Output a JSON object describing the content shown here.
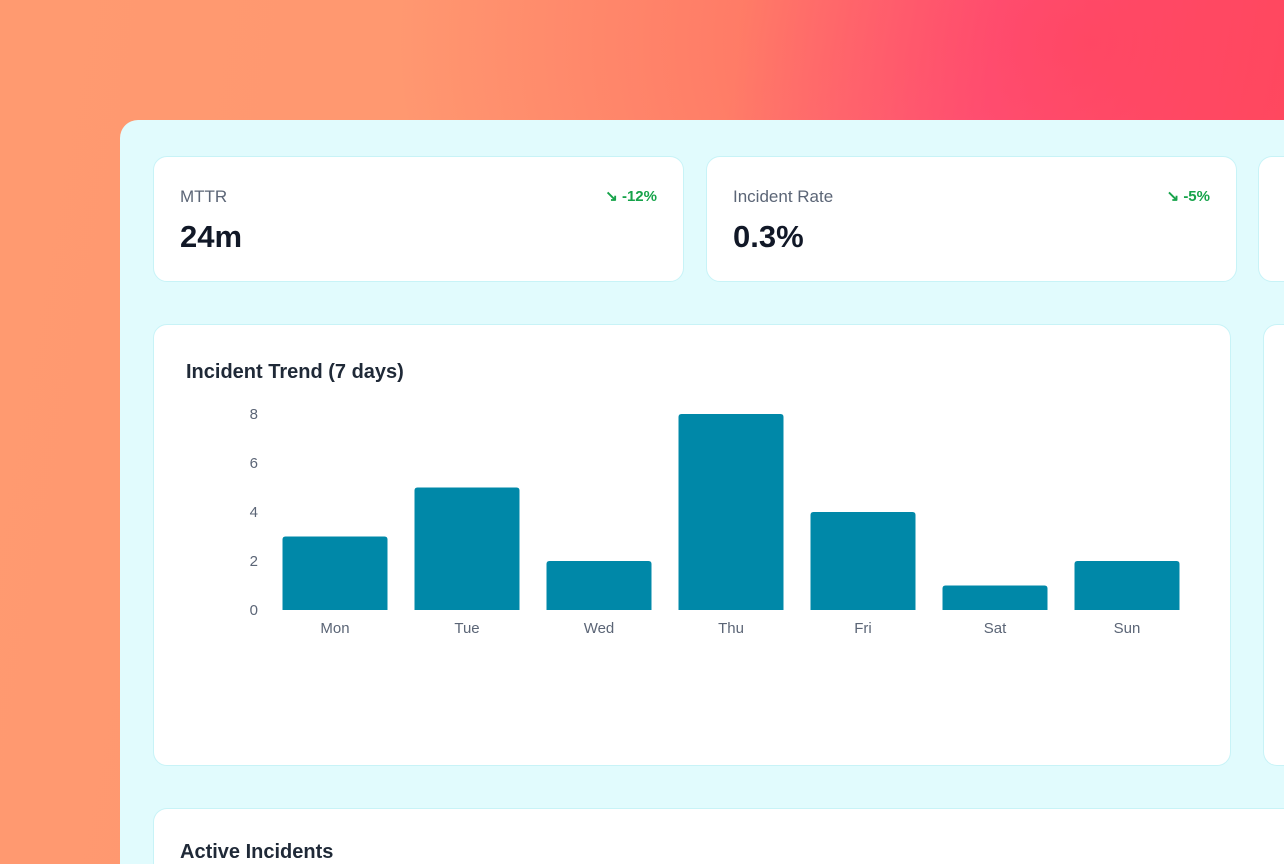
{
  "kpis": [
    {
      "label": "MTTR",
      "value": "24m",
      "delta": "-12%",
      "trend_icon": "trending-down-icon",
      "delta_color": "#16a34a"
    },
    {
      "label": "Incident Rate",
      "value": "0.3%",
      "delta": "-5%",
      "trend_icon": "trending-down-icon",
      "delta_color": "#16a34a"
    }
  ],
  "chart_title": "Incident Trend (7 days)",
  "chart_data": {
    "type": "bar",
    "title": "Incident Trend (7 days)",
    "categories": [
      "Mon",
      "Tue",
      "Wed",
      "Thu",
      "Fri",
      "Sat",
      "Sun"
    ],
    "values": [
      3,
      5,
      2,
      8,
      4,
      1,
      2
    ],
    "yticks": [
      0,
      2,
      4,
      6,
      8
    ],
    "ylim": [
      0,
      8
    ],
    "grid": false,
    "color": "#0088a8"
  },
  "incidents_title": "Active Incidents"
}
